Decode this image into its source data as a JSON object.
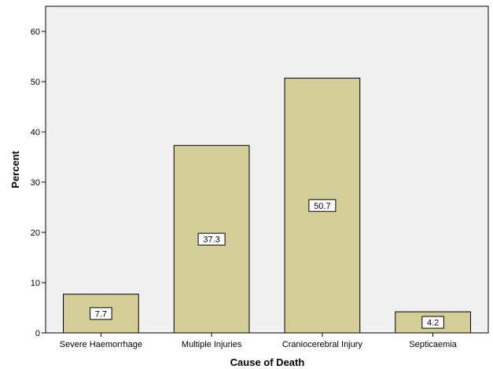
{
  "chart_data": {
    "type": "bar",
    "categories": [
      "Severe Haemorrhage",
      "Multiple Injuries",
      "Craniocerebral Injury",
      "Septicaemia"
    ],
    "values": [
      7.7,
      37.3,
      50.7,
      4.2
    ],
    "data_labels": [
      "7.7",
      "37.3",
      "50.7",
      "4.2"
    ],
    "title": "",
    "xlabel": "Cause of Death",
    "ylabel": "Percent",
    "ylim": [
      0,
      65
    ],
    "yticks": [
      0,
      10,
      20,
      30,
      40,
      50,
      60
    ],
    "grid": false,
    "colors": {
      "plot_background": "#f0f0f0",
      "bar_fill": "#d3ce97",
      "bar_stroke": "#000000"
    }
  }
}
